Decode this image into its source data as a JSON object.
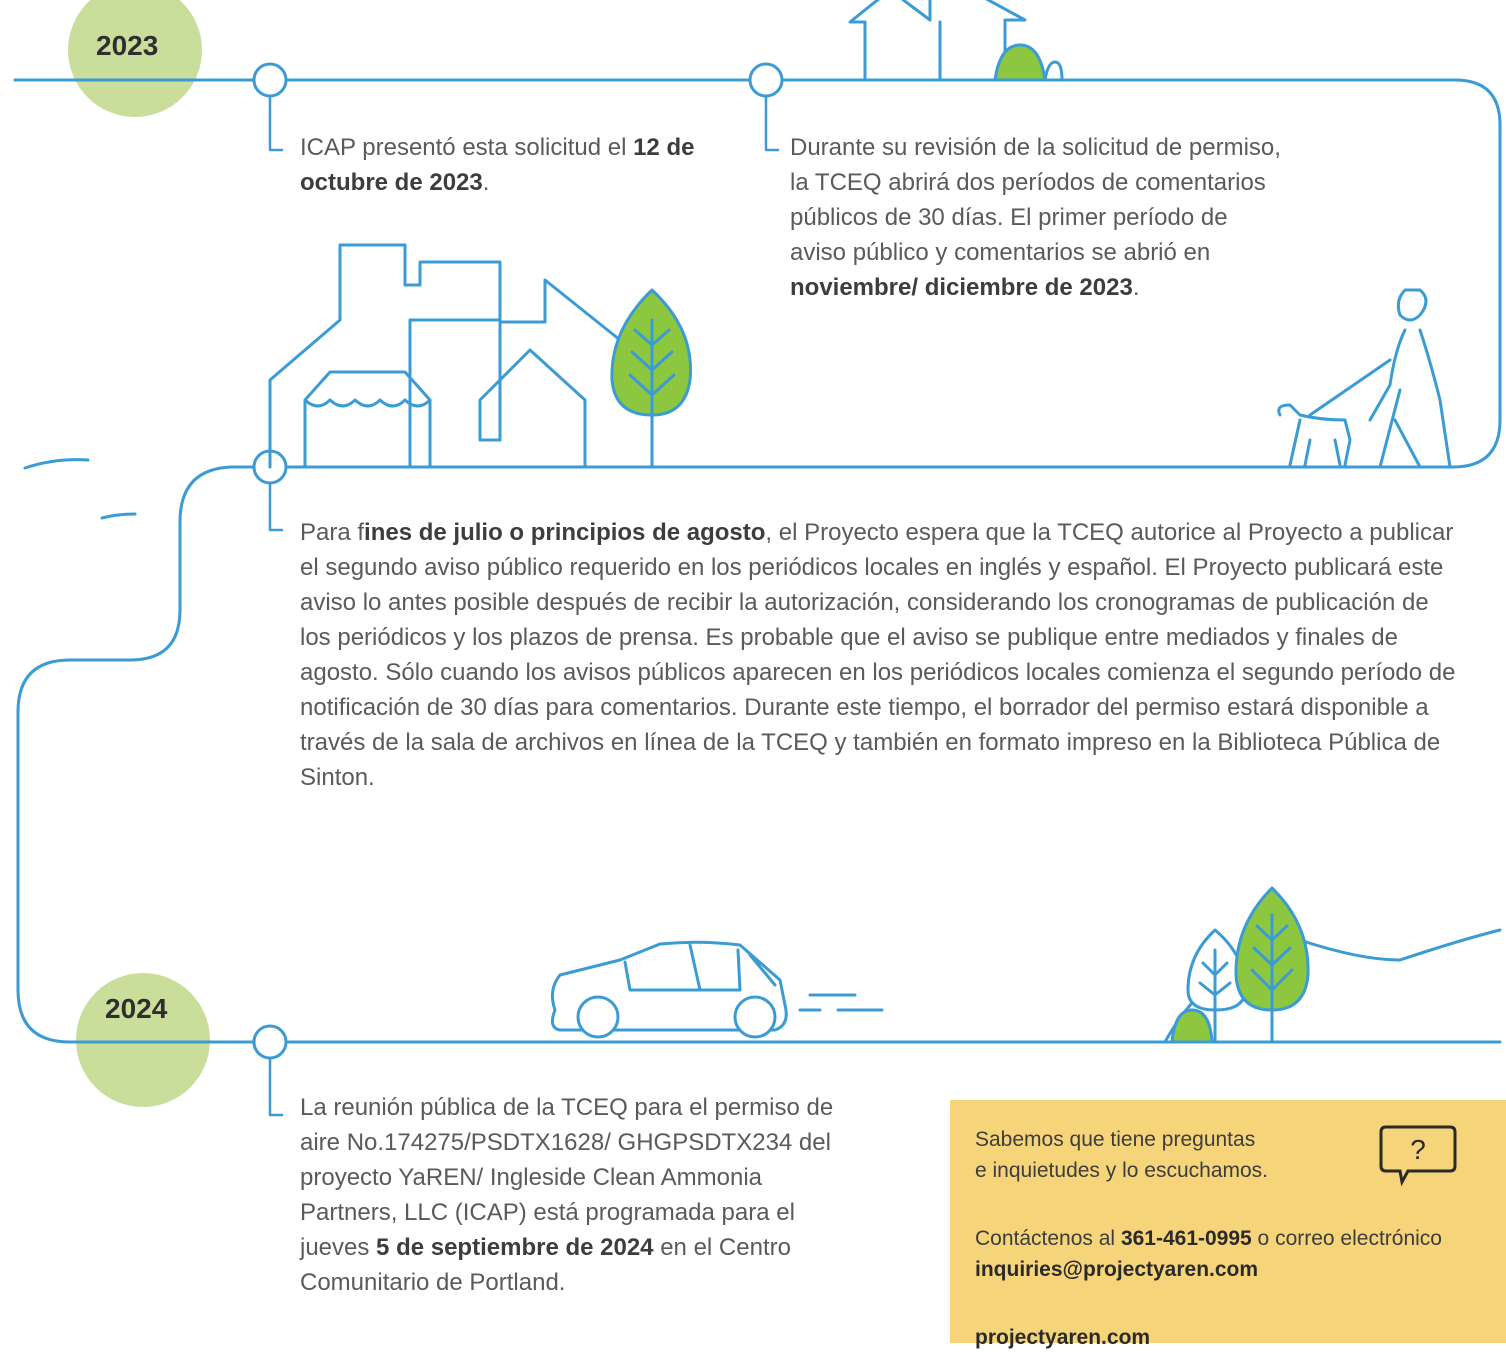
{
  "years": [
    "2023",
    "2024"
  ],
  "entries": [
    [
      "ICAP presentó esta solicitud el ",
      "12 de octubre de 2023",
      "."
    ],
    [
      "Durante su revisión de la solicitud de permiso, la TCEQ abrirá dos períodos de comentarios públicos de 30 días. El primer período de aviso público y comentarios se abrió en ",
      "noviembre/ diciembre de 2023",
      "."
    ],
    [
      "Para f",
      "ines de julio o principios de agosto",
      ", el Proyecto espera que la TCEQ autorice al Proyecto a publicar el segundo aviso público requerido en los periódicos locales en inglés y español. El Proyecto publicará este aviso lo antes posible después de recibir la autorización, considerando los cronogramas de publicación de los periódicos y los plazos de prensa. Es probable que el aviso se publique entre mediados y finales de agosto. Sólo cuando los avisos públicos aparecen en los periódicos locales comienza el segundo período de notificación de 30 días para comentarios. Durante este tiempo, el borrador del permiso estará disponible a través de la sala de archivos en línea de la TCEQ y también en formato impreso en la Biblioteca Pública de Sinton."
    ],
    [
      "La reunión pública de la TCEQ para el permiso de aire No.174275/PSDTX1628/ GHGPSDTX234 del proyecto YaREN/ Ingleside Clean Ammonia Partners, LLC (ICAP) está programada para el jueves ",
      "5 de septiembre de 2024",
      " en el Centro Comunitario de Portland."
    ]
  ],
  "contact": {
    "intro": [
      "Sabemos que tiene preguntas",
      "e inquietudes y lo escuchamos."
    ],
    "icon": "?",
    "details": [
      "Contáctenos al ",
      "361-461-0995",
      " o correo electrónico ",
      "inquiries@projectyaren.com"
    ],
    "website": "projectyaren.com"
  }
}
